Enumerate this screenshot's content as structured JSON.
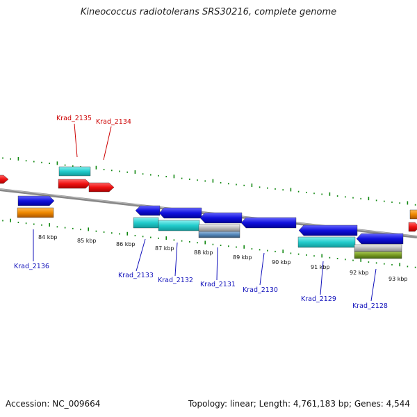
{
  "title": "Kineococcus radiotolerans SRS30216, complete genome",
  "accession": "Accession: NC_009664",
  "topology": "Topology: linear; Length: 4,761,183 bp; Genes: 4,544",
  "colors": {
    "red": "#ee1111",
    "cyan": "#22cccc",
    "blue": "#1111dd",
    "orange": "#ee8800",
    "grey": "#bbbbbb",
    "steel": "#5588bb",
    "olive": "#779922",
    "tick": "#118811",
    "backbone": "#888888",
    "label_red": "#cc0000",
    "label_blue": "#1111bb"
  },
  "kbp_ticks": [
    "84 kbp",
    "85 kbp",
    "86 kbp",
    "87 kbp",
    "88 kbp",
    "89 kbp",
    "90 kbp",
    "91 kbp",
    "92 kbp",
    "93 kbp"
  ],
  "gene_labels_top": [
    "Krad_2135",
    "Krad_2134"
  ],
  "gene_labels_bottom": [
    "Krad_2136",
    "Krad_2133",
    "Krad_2132",
    "Krad_2131",
    "Krad_2130",
    "Krad_2129",
    "Krad_2128"
  ]
}
